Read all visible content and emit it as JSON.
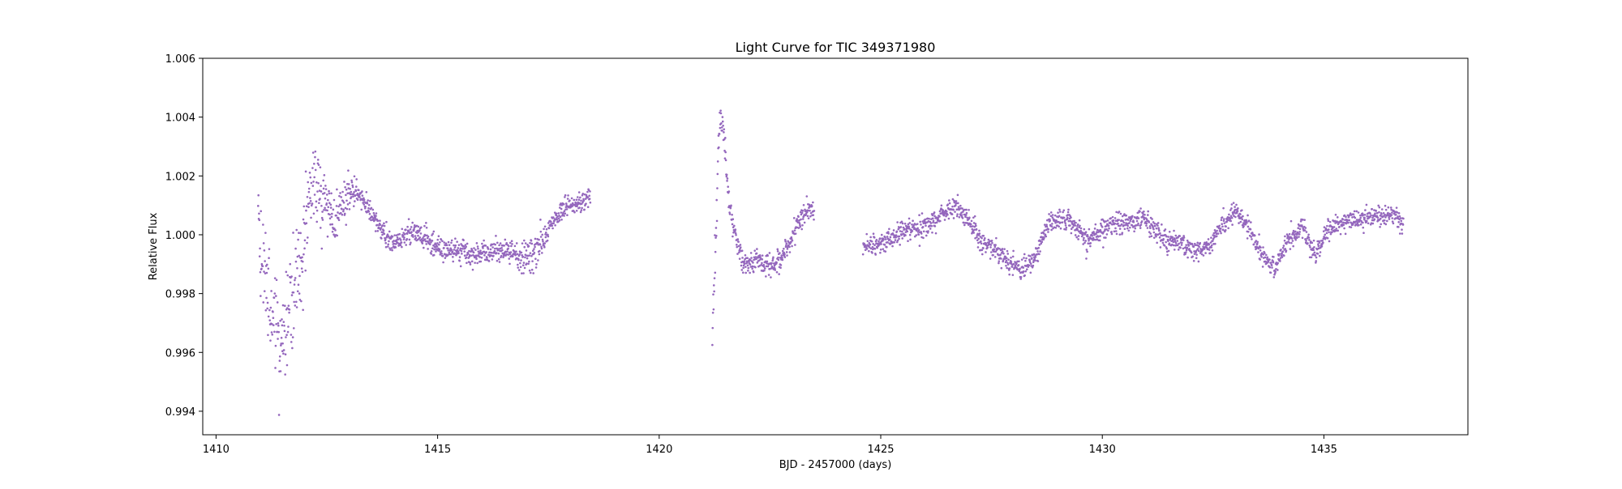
{
  "chart_data": {
    "type": "scatter",
    "title": "Light Curve for TIC 349371980",
    "xlabel": "BJD - 2457000 (days)",
    "ylabel": "Relative Flux",
    "xlim": [
      1409.7,
      1438.25
    ],
    "ylim": [
      0.9932,
      1.006
    ],
    "xticks": [
      1410,
      1415,
      1420,
      1425,
      1430,
      1435
    ],
    "xtick_labels": [
      "1410",
      "1415",
      "1420",
      "1425",
      "1430",
      "1435"
    ],
    "yticks": [
      0.994,
      0.996,
      0.998,
      1.0,
      1.002,
      1.004,
      1.006
    ],
    "ytick_labels": [
      "0.994",
      "0.996",
      "0.998",
      "1.000",
      "1.002",
      "1.004",
      "1.006"
    ],
    "grid": false,
    "marker_color": "#9467bd",
    "series": [
      {
        "segments": [
          {
            "x": [
              1410.95,
              1411.0,
              1411.1,
              1411.2,
              1411.3,
              1411.45,
              1411.6,
              1411.75,
              1411.9,
              1412.05,
              1412.2,
              1412.35,
              1412.5,
              1412.65,
              1412.8,
              1412.95,
              1413.1,
              1413.25,
              1413.4,
              1413.55,
              1413.7,
              1413.85,
              1414.0,
              1414.2,
              1414.4,
              1414.6,
              1414.8,
              1415.0,
              1415.2,
              1415.4,
              1415.6,
              1415.8,
              1416.0,
              1416.2,
              1416.4,
              1416.6,
              1416.8,
              1417.0,
              1417.15,
              1417.3,
              1417.5,
              1417.7,
              1417.9,
              1418.1,
              1418.3,
              1418.45
            ],
            "y": [
              1.0018,
              0.9995,
              0.9985,
              0.998,
              0.9975,
              0.9965,
              0.997,
              0.9985,
              0.9992,
              1.0005,
              1.0018,
              1.0012,
              1.0008,
              1.0003,
              1.001,
              1.0013,
              1.0015,
              1.0013,
              1.001,
              1.0006,
              1.0003,
              0.9999,
              0.9997,
              0.9999,
              1.0001,
              1.0,
              0.9998,
              0.9996,
              0.9995,
              0.9995,
              0.9994,
              0.9993,
              0.9994,
              0.9995,
              0.9995,
              0.9994,
              0.9993,
              0.9992,
              0.9993,
              0.9997,
              1.0002,
              1.0006,
              1.0009,
              1.001,
              1.0011,
              1.0012
            ],
            "scatter": [
              0.0009,
              0.0015,
              0.0015,
              0.0015,
              0.0015,
              0.0015,
              0.0014,
              0.0013,
              0.0012,
              0.0012,
              0.0011,
              0.0011,
              0.001,
              0.0008,
              0.0007,
              0.0006,
              0.0004,
              0.0003,
              0.0003,
              0.0003,
              0.0003,
              0.0003,
              0.0003,
              0.0003,
              0.0003,
              0.0003,
              0.0003,
              0.0003,
              0.0003,
              0.0003,
              0.0003,
              0.0003,
              0.0003,
              0.0003,
              0.0003,
              0.0003,
              0.0003,
              0.0006,
              0.0008,
              0.0004,
              0.0003,
              0.0003,
              0.0003,
              0.0003,
              0.0003,
              0.0003
            ]
          },
          {
            "x": [
              1421.2,
              1421.25,
              1421.3,
              1421.35,
              1421.4,
              1421.45,
              1421.5,
              1421.55,
              1421.6,
              1421.7,
              1421.8,
              1421.9,
              1422.0,
              1422.2,
              1422.4,
              1422.6,
              1422.8,
              1422.9,
              1423.0,
              1423.1,
              1423.2,
              1423.3,
              1423.4,
              1423.5
            ],
            "y": [
              0.9965,
              0.9985,
              1.001,
              1.0035,
              1.004,
              1.0035,
              1.0025,
              1.0015,
              1.0008,
              1.0002,
              0.9995,
              0.9991,
              0.999,
              0.9991,
              0.999,
              0.999,
              0.9993,
              0.9996,
              0.9999,
              1.0003,
              1.0006,
              1.0008,
              1.0009,
              1.0009
            ],
            "scatter": [
              0.0008,
              0.0008,
              0.0007,
              0.0005,
              0.0004,
              0.0004,
              0.0004,
              0.0004,
              0.0003,
              0.0003,
              0.0003,
              0.0003,
              0.0003,
              0.0003,
              0.0003,
              0.0003,
              0.0003,
              0.0003,
              0.0003,
              0.0003,
              0.0003,
              0.0003,
              0.0003,
              0.0003
            ]
          },
          {
            "x": [
              1424.6,
              1424.9,
              1425.2,
              1425.5,
              1425.8,
              1426.1,
              1426.4,
              1426.7,
              1427.0,
              1427.3,
              1427.6,
              1427.9,
              1428.2,
              1428.5,
              1428.8,
              1429.1,
              1429.4,
              1429.7,
              1430.0,
              1430.3,
              1430.6,
              1430.9,
              1431.2,
              1431.5,
              1431.8,
              1432.1,
              1432.4,
              1432.7,
              1433.0,
              1433.3,
              1433.6,
              1433.9,
              1434.2,
              1434.5,
              1434.8,
              1435.1,
              1435.4,
              1435.7,
              1436.0,
              1436.3,
              1436.6,
              1436.8
            ],
            "y": [
              0.9997,
              0.9996,
              0.9999,
              1.0001,
              1.0002,
              1.0004,
              1.0007,
              1.001,
              1.0004,
              0.9997,
              0.9995,
              0.999,
              0.9988,
              0.9993,
              1.0005,
              1.0006,
              1.0003,
              0.9998,
              1.0002,
              1.0004,
              1.0004,
              1.0006,
              1.0001,
              0.9998,
              0.9997,
              0.9994,
              0.9996,
              1.0003,
              1.0008,
              1.0003,
              0.9993,
              0.9989,
              0.9998,
              1.0003,
              0.9993,
              1.0002,
              1.0004,
              1.0005,
              1.0006,
              1.0007,
              1.0007,
              1.0003
            ],
            "scatter": [
              0.0003,
              0.0003,
              0.0003,
              0.0003,
              0.0003,
              0.0003,
              0.0003,
              0.0003,
              0.0003,
              0.0003,
              0.0003,
              0.0003,
              0.0003,
              0.0003,
              0.0003,
              0.0003,
              0.0003,
              0.0003,
              0.0003,
              0.0003,
              0.0003,
              0.0003,
              0.0003,
              0.0003,
              0.0003,
              0.0003,
              0.0003,
              0.0003,
              0.0003,
              0.0003,
              0.0003,
              0.0003,
              0.0003,
              0.0003,
              0.0003,
              0.0003,
              0.0003,
              0.0003,
              0.0003,
              0.0003,
              0.0003,
              0.0003
            ]
          }
        ]
      }
    ]
  }
}
